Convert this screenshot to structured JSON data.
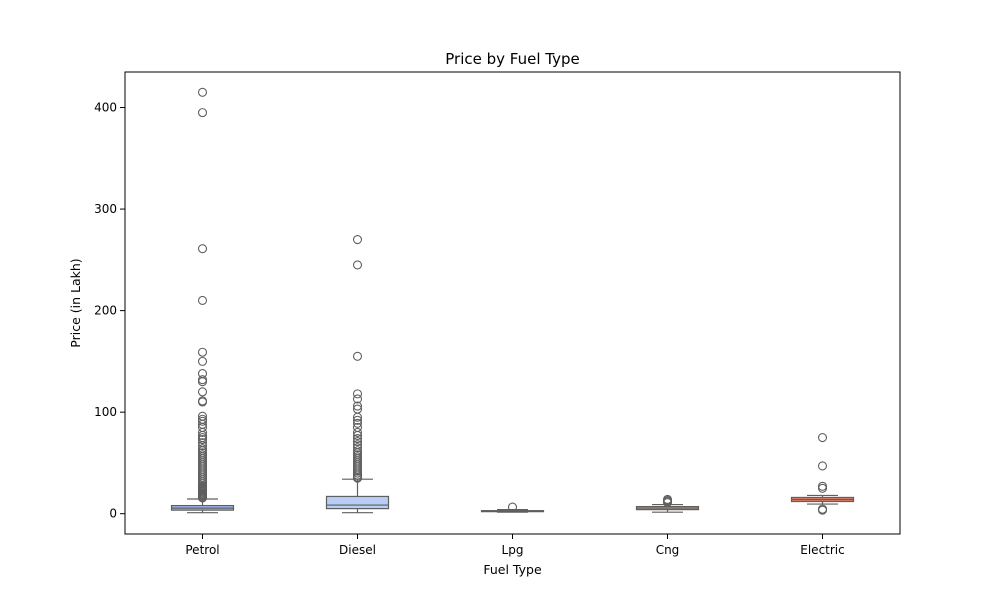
{
  "chart_data": {
    "type": "box",
    "title": "Price by Fuel Type",
    "xlabel": "Fuel Type",
    "ylabel": "Price (in Lakh)",
    "ylim": [
      -20,
      435
    ],
    "yticks": [
      0,
      100,
      200,
      300,
      400
    ],
    "grid": false,
    "categories": [
      "Petrol",
      "Diesel",
      "Lpg",
      "Cng",
      "Electric"
    ],
    "colors": [
      "#a1b8f2",
      "#b7cdf6",
      "#e9e0dc",
      "#f3b79b",
      "#e8806b"
    ],
    "boxes": [
      {
        "category": "Petrol",
        "whisker_low": 1.0,
        "q1": 3.5,
        "median": 5.5,
        "q3": 8.0,
        "whisker_high": 14.5,
        "outliers": [
          415,
          395,
          261,
          210,
          159,
          150,
          138,
          132,
          130,
          120,
          111,
          110,
          96,
          93,
          91,
          88,
          85,
          80,
          77,
          75,
          73,
          70,
          67,
          64,
          62,
          60,
          58,
          56,
          54,
          52,
          50,
          48,
          46,
          44,
          42,
          40,
          38,
          36,
          34,
          32,
          30,
          28,
          27,
          26,
          25,
          24,
          23,
          22,
          21,
          20,
          19,
          18,
          17,
          16,
          15.5
        ]
      },
      {
        "category": "Diesel",
        "whisker_low": 1.0,
        "q1": 5.0,
        "median": 8.5,
        "q3": 17.0,
        "whisker_high": 34.0,
        "outliers": [
          270,
          245,
          155,
          118,
          113,
          106,
          103,
          95,
          92,
          89,
          85,
          80,
          77,
          74,
          71,
          68,
          65,
          62,
          60,
          58,
          56,
          54,
          52,
          50,
          48,
          46,
          44,
          42,
          40,
          38,
          36,
          35
        ]
      },
      {
        "category": "Lpg",
        "whisker_low": 1.5,
        "q1": 2.0,
        "median": 2.5,
        "q3": 3.0,
        "whisker_high": 4.0,
        "outliers": [
          6.5
        ]
      },
      {
        "category": "Cng",
        "whisker_low": 1.5,
        "q1": 4.0,
        "median": 5.5,
        "q3": 7.0,
        "whisker_high": 9.0,
        "outliers": [
          14,
          13,
          12,
          11
        ]
      },
      {
        "category": "Electric",
        "whisker_low": 9.5,
        "q1": 12.0,
        "median": 14.0,
        "q3": 16.0,
        "whisker_high": 18.0,
        "outliers": [
          75,
          47,
          27,
          25,
          4.5,
          3.5
        ]
      }
    ]
  }
}
